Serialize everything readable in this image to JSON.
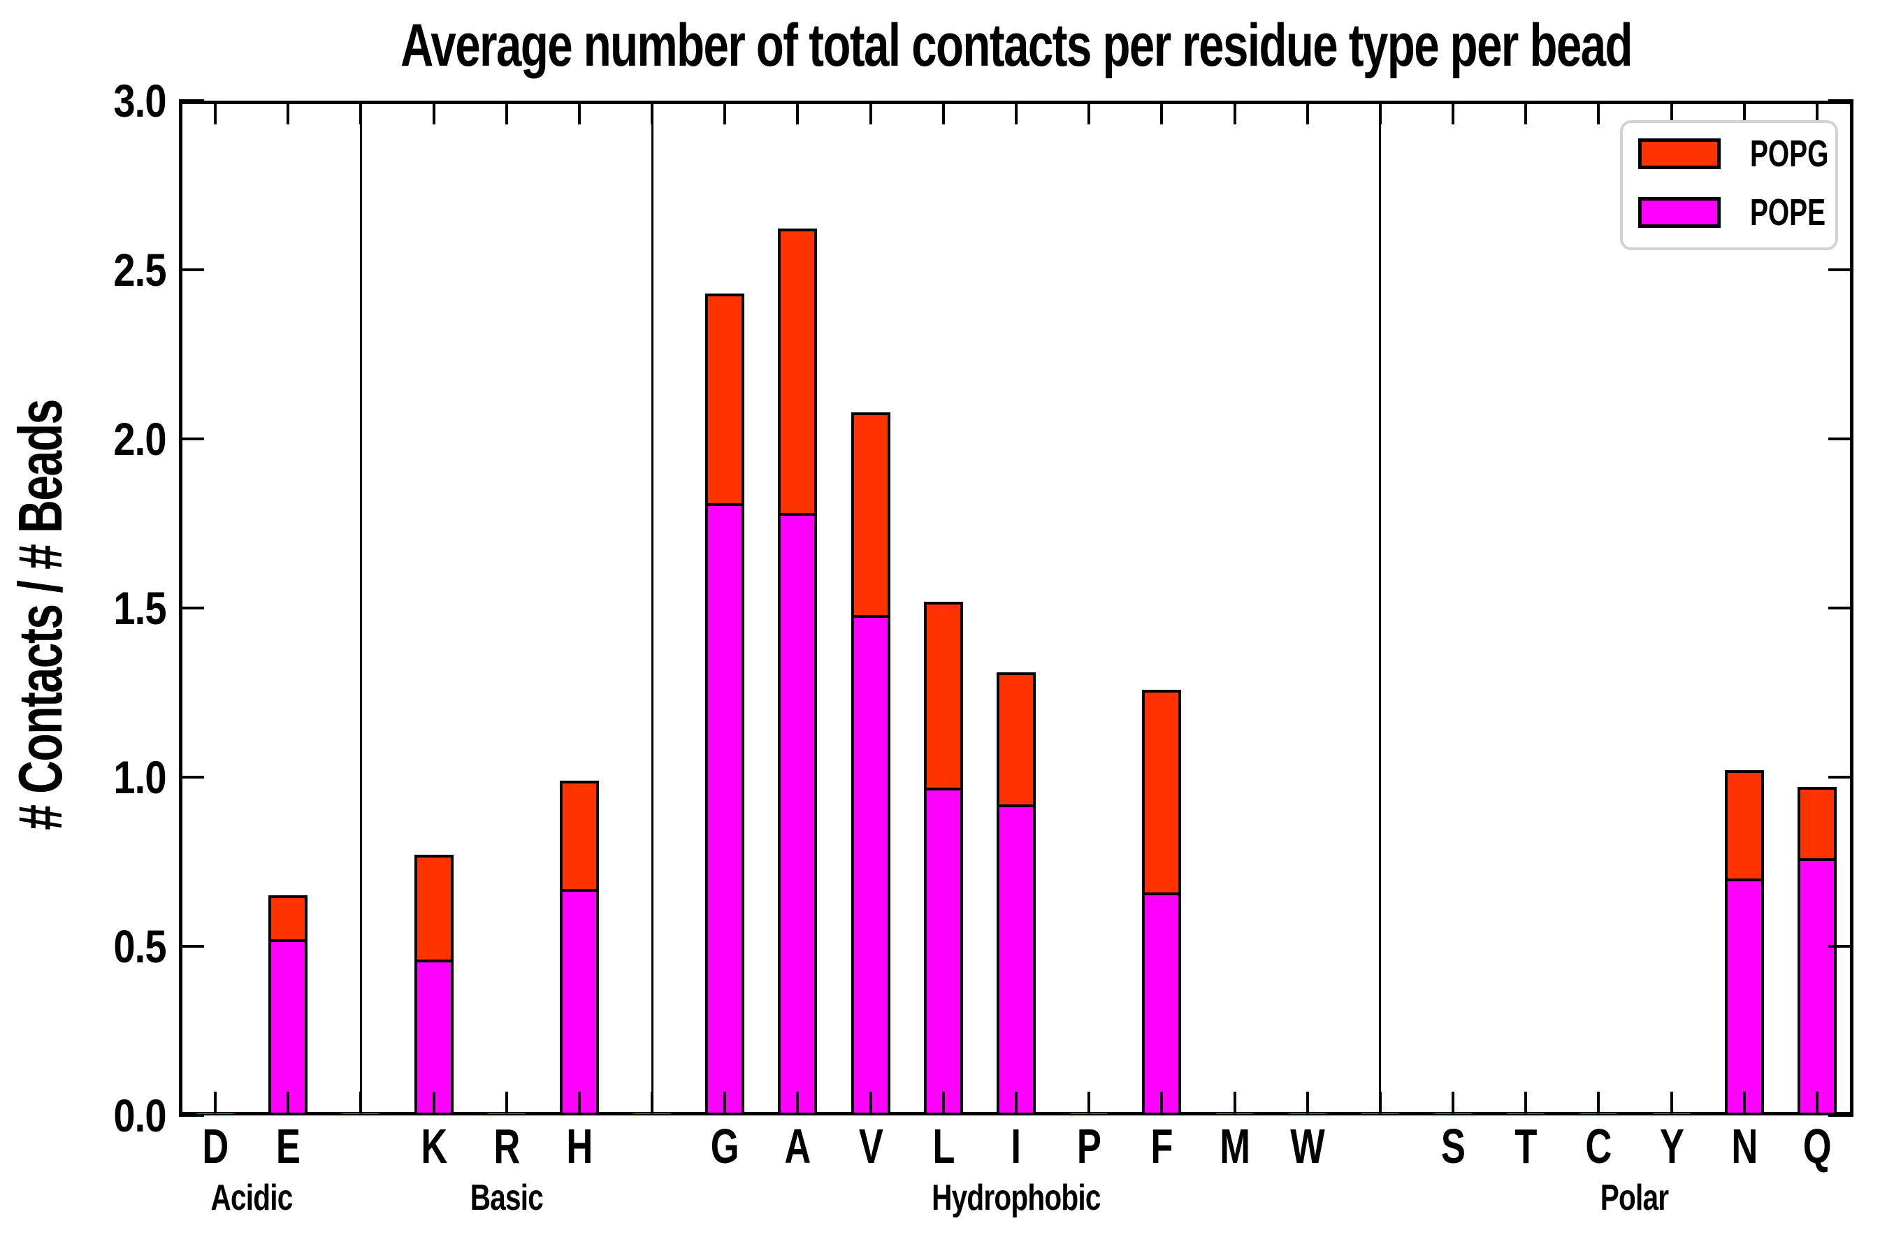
{
  "title": "Average number of total contacts per residue type per bead",
  "ylabel": "# Contacts / # Beads",
  "legend": {
    "position": "upper right",
    "items": [
      {
        "label": "POPG",
        "color": "#ff3300"
      },
      {
        "label": "POPE",
        "color": "#ff00ff"
      }
    ]
  },
  "colors": {
    "popg": "#ff3300",
    "pope": "#ff00ff",
    "bar_edge": "#000000",
    "legend_border": "#d3d3d3"
  },
  "chart_data": {
    "type": "bar",
    "stacked": true,
    "grid": false,
    "ylim": [
      0,
      3
    ],
    "ytick_step": 0.5,
    "ytick_labels": [
      "0.0",
      "0.5",
      "1.0",
      "1.5",
      "2.0",
      "2.5",
      "3.0"
    ],
    "series_order": [
      "POPE",
      "POPG"
    ],
    "separator_bar_value": 0.01,
    "groups": [
      {
        "label": "Acidic",
        "categories": [
          "D",
          "E"
        ],
        "POPE": [
          0.01,
          0.52
        ],
        "POPG": [
          0,
          0.13
        ]
      },
      {
        "label": "Basic",
        "categories": [
          "K",
          "R",
          "H"
        ],
        "POPE": [
          0.46,
          0.01,
          0.67
        ],
        "POPG": [
          0.31,
          0,
          0.32
        ]
      },
      {
        "label": "Hydrophobic",
        "categories": [
          "G",
          "A",
          "V",
          "L",
          "I",
          "P",
          "F",
          "M",
          "W"
        ],
        "POPE": [
          1.81,
          1.78,
          1.48,
          0.97,
          0.92,
          0.01,
          0.66,
          0.01,
          0.01
        ],
        "POPG": [
          0.62,
          0.84,
          0.6,
          0.55,
          0.39,
          0,
          0.6,
          0,
          0
        ]
      },
      {
        "label": "Polar",
        "categories": [
          "S",
          "T",
          "C",
          "Y",
          "N",
          "Q"
        ],
        "POPE": [
          0.01,
          0.01,
          0.01,
          0.01,
          0.7,
          0.76
        ],
        "POPG": [
          0,
          0,
          0,
          0,
          0.32,
          0.21
        ]
      }
    ]
  }
}
